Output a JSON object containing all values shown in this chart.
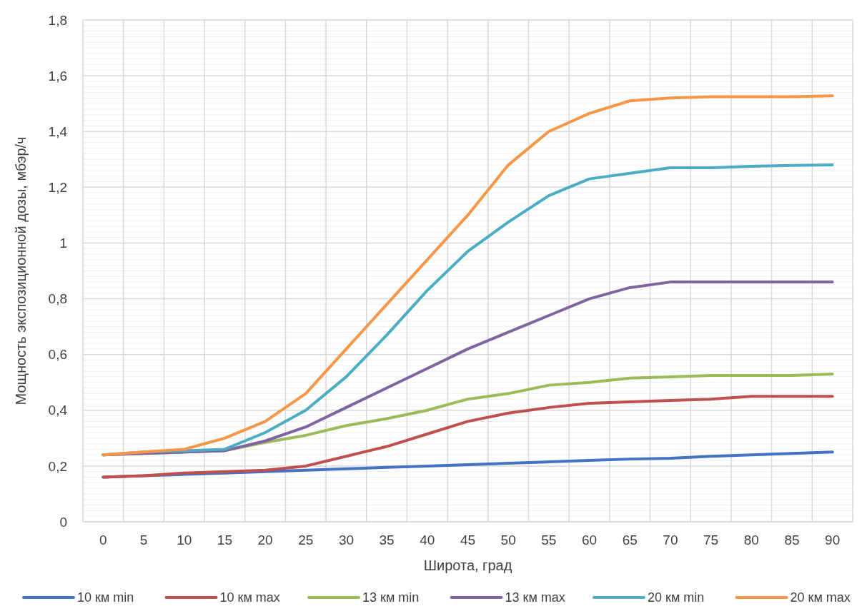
{
  "chart_data": {
    "type": "line",
    "xlabel": "Широта, град",
    "ylabel": "Мощность экспозиционной дозы, мбэр/ч",
    "categories": [
      "0",
      "5",
      "10",
      "15",
      "20",
      "25",
      "30",
      "35",
      "40",
      "45",
      "50",
      "55",
      "60",
      "65",
      "70",
      "75",
      "80",
      "85",
      "90"
    ],
    "ylim": [
      0,
      1.8
    ],
    "yticks": [
      0,
      {
        "value": 0.2,
        "label": "0,2"
      },
      {
        "value": 0.4,
        "label": "0,4"
      },
      {
        "value": 0.6,
        "label": "0,6"
      },
      {
        "value": 0.8,
        "label": "0,8"
      },
      1,
      {
        "value": 1.2,
        "label": "1,2"
      },
      {
        "value": 1.4,
        "label": "1,4"
      },
      {
        "value": 1.6,
        "label": "1,6"
      },
      {
        "value": 1.8,
        "label": "1,8"
      }
    ],
    "grid": true,
    "legend": "bottom",
    "line_style": "solid",
    "series": [
      {
        "name": "10 км min",
        "color": "#4472c4",
        "values": [
          0.16,
          0.165,
          0.17,
          0.175,
          0.18,
          0.185,
          0.19,
          0.195,
          0.2,
          0.205,
          0.21,
          0.215,
          0.22,
          0.225,
          0.228,
          0.235,
          0.24,
          0.245,
          0.25
        ]
      },
      {
        "name": "10 км max",
        "color": "#c0504d",
        "values": [
          0.16,
          0.165,
          0.175,
          0.18,
          0.185,
          0.2,
          0.235,
          0.27,
          0.315,
          0.36,
          0.39,
          0.41,
          0.425,
          0.43,
          0.435,
          0.44,
          0.45,
          0.45,
          0.45
        ]
      },
      {
        "name": "13 км min",
        "color": "#9bbb59",
        "values": [
          0.24,
          0.245,
          0.25,
          0.255,
          0.285,
          0.31,
          0.345,
          0.37,
          0.4,
          0.44,
          0.46,
          0.49,
          0.5,
          0.515,
          0.52,
          0.525,
          0.525,
          0.525,
          0.53
        ]
      },
      {
        "name": "13 км max",
        "color": "#8064a2",
        "values": [
          0.24,
          0.245,
          0.25,
          0.255,
          0.29,
          0.34,
          0.41,
          0.48,
          0.55,
          0.62,
          0.68,
          0.74,
          0.8,
          0.84,
          0.86,
          0.86,
          0.86,
          0.86,
          0.86
        ]
      },
      {
        "name": "20 км min",
        "color": "#4bacc6",
        "values": [
          0.24,
          0.25,
          0.255,
          0.26,
          0.32,
          0.4,
          0.52,
          0.67,
          0.83,
          0.97,
          1.075,
          1.17,
          1.23,
          1.25,
          1.27,
          1.27,
          1.275,
          1.278,
          1.28
        ]
      },
      {
        "name": "20 км max",
        "color": "#f79646",
        "values": [
          0.24,
          0.25,
          0.26,
          0.3,
          0.36,
          0.46,
          0.62,
          0.78,
          0.94,
          1.1,
          1.28,
          1.4,
          1.465,
          1.51,
          1.52,
          1.525,
          1.525,
          1.525,
          1.528
        ]
      }
    ]
  }
}
